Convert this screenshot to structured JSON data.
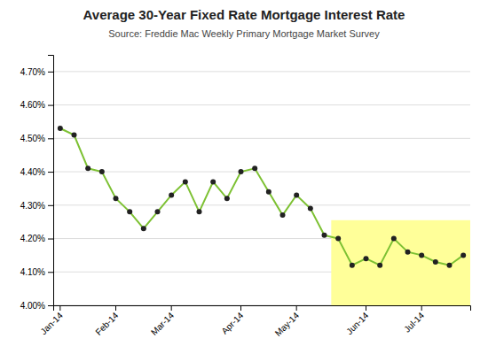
{
  "chart_data": {
    "type": "line",
    "title": "Average 30-Year Fixed Rate Mortgage Interest Rate",
    "subtitle": "Source: Freddie Mac Weekly Primary Mortgage Market Survey",
    "categories": [
      "Jan-14",
      null,
      null,
      null,
      "Feb-14",
      null,
      null,
      null,
      "Mar-14",
      null,
      null,
      null,
      null,
      "Apr-14",
      null,
      null,
      null,
      "May-14",
      null,
      null,
      null,
      null,
      "Jun-14",
      null,
      null,
      null,
      "Jul-14",
      null,
      null,
      null
    ],
    "values": [
      4.53,
      4.51,
      4.41,
      4.4,
      4.32,
      4.28,
      4.23,
      4.28,
      4.33,
      4.37,
      4.28,
      4.37,
      4.32,
      4.4,
      4.41,
      4.34,
      4.27,
      4.33,
      4.29,
      4.21,
      4.2,
      4.12,
      4.14,
      4.12,
      4.2,
      4.16,
      4.15,
      4.13,
      4.12,
      4.15
    ],
    "color": "#7DC133",
    "marker": "circle",
    "ylim": [
      4.0,
      4.75
    ],
    "yticks": [
      {
        "value": 4.0,
        "label": "4.00%"
      },
      {
        "value": 4.1,
        "label": "4.10%"
      },
      {
        "value": 4.2,
        "label": "4.20%"
      },
      {
        "value": 4.3,
        "label": "4.30%"
      },
      {
        "value": 4.4,
        "label": "4.40%"
      },
      {
        "value": 4.5,
        "label": "4.50%"
      },
      {
        "value": 4.6,
        "label": "4.60%"
      },
      {
        "value": 4.7,
        "label": "4.70%"
      }
    ],
    "grid": true,
    "highlight": {
      "start": 20,
      "bottom": 4.0,
      "top": 4.255,
      "color": "#FFFF99"
    }
  }
}
